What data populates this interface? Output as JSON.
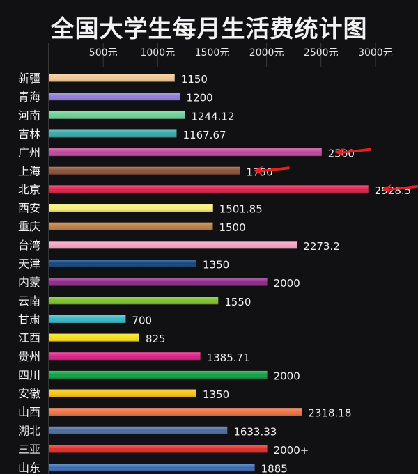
{
  "page": {
    "background": "#111113"
  },
  "chart_data": {
    "type": "bar",
    "orientation": "horizontal",
    "title": "全国大学生每月生活费统计图",
    "xlabel": "",
    "ylabel": "",
    "xlim": [
      0,
      3000
    ],
    "xticks": [
      500,
      1000,
      1500,
      2000,
      2500,
      3000
    ],
    "xtick_labels": [
      "500元",
      "1000元",
      "1500元",
      "2000元",
      "2500元",
      "3000元"
    ],
    "grid": true,
    "categories": [
      "新疆",
      "青海",
      "河南",
      "吉林",
      "广州",
      "上海",
      "北京",
      "西安",
      "重庆",
      "台湾",
      "天津",
      "内蒙",
      "云南",
      "甘肃",
      "江西",
      "贵州",
      "四川",
      "安徽",
      "山西",
      "湖北",
      "三亚",
      "山东"
    ],
    "values": [
      1150,
      1200,
      1244.12,
      1167.67,
      2500,
      1750,
      2928.5,
      1501.85,
      1500,
      2273.2,
      1350,
      2000,
      1550,
      700,
      825,
      1385.71,
      2000,
      1350,
      2318.18,
      1633.33,
      2000,
      1885
    ],
    "value_labels": [
      "1150",
      "1200",
      "1244.12",
      "1167.67",
      "2500",
      "1750",
      "2928.5",
      "1501.85",
      "1500",
      "2273.2",
      "1350",
      "2000",
      "1550",
      "700",
      "825",
      "1385.71",
      "2000",
      "1350",
      "2318.18",
      "1633.33",
      "2000+",
      "1885"
    ],
    "colors": [
      "#f5c58e",
      "#8f7fd8",
      "#6fcf97",
      "#3aa7a8",
      "#c0479a",
      "#8a5138",
      "#e0204a",
      "#f8f07a",
      "#b98042",
      "#f5a3c4",
      "#14467e",
      "#8e2a8c",
      "#7cc030",
      "#36b6c8",
      "#f6e018",
      "#e01d86",
      "#13a046",
      "#f6c318",
      "#ee7446",
      "#4f6d9a",
      "#dd2f2a",
      "#3b6bb3"
    ],
    "annotations": [
      {
        "type": "arrow",
        "color": "#e52121",
        "target": "广州"
      },
      {
        "type": "arrow",
        "color": "#e52121",
        "target": "上海"
      },
      {
        "type": "arrow",
        "color": "#e52121",
        "target": "北京"
      }
    ]
  }
}
